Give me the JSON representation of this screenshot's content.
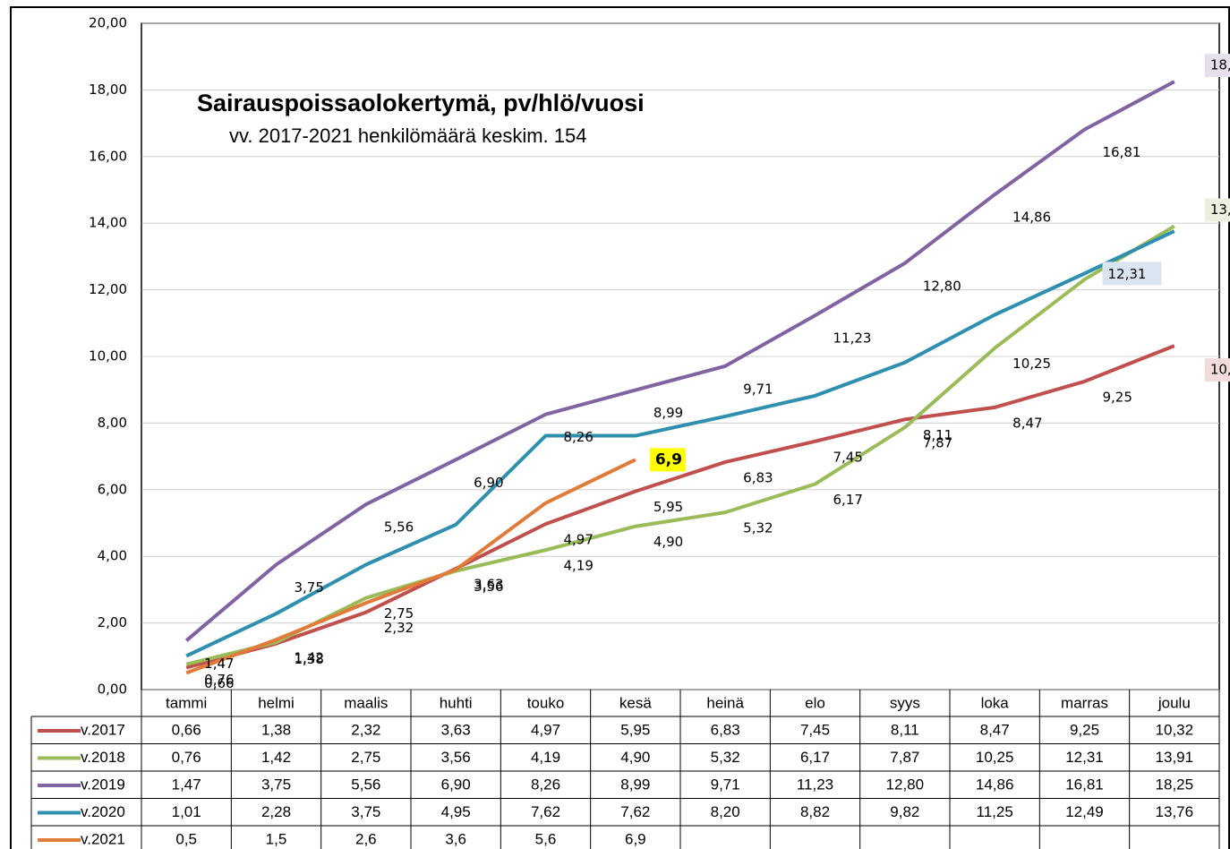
{
  "chart_data": {
    "type": "line",
    "title": "Sairauspoissaolokertymä,  pv/hlö/vuosi",
    "subtitle": "vv. 2017-2021 henkilömäärä  keskim. 154",
    "categories": [
      "tammi",
      "helmi",
      "maalis",
      "huhti",
      "touko",
      "kesä",
      "heinä",
      "elo",
      "syys",
      "loka",
      "marras",
      "joulu"
    ],
    "ylim": [
      0,
      20
    ],
    "yticks": [
      {
        "value": 0,
        "label": "0,00"
      },
      {
        "value": 2,
        "label": "2,00"
      },
      {
        "value": 4,
        "label": "4,00"
      },
      {
        "value": 6,
        "label": "6,00"
      },
      {
        "value": 8,
        "label": "8,00"
      },
      {
        "value": 10,
        "label": "10,00"
      },
      {
        "value": 12,
        "label": "12,00"
      },
      {
        "value": 14,
        "label": "14,00"
      },
      {
        "value": 16,
        "label": "16,00"
      },
      {
        "value": 18,
        "label": "18,00"
      },
      {
        "value": 20,
        "label": "20,00"
      }
    ],
    "grid": true,
    "series": [
      {
        "name": "v.2017",
        "color": "#c0504d",
        "values": [
          0.66,
          1.38,
          2.32,
          3.63,
          4.97,
          5.95,
          6.83,
          7.45,
          8.11,
          8.47,
          9.25,
          10.32
        ],
        "value_labels": [
          "0,66",
          "1,38",
          "2,32",
          "3,63",
          "4,97",
          "5,95",
          "6,83",
          "7,45",
          "8,11",
          "8,47",
          "9,25",
          "10,32"
        ]
      },
      {
        "name": "v.2018",
        "color": "#9bbb59",
        "values": [
          0.76,
          1.42,
          2.75,
          3.56,
          4.19,
          4.9,
          5.32,
          6.17,
          7.87,
          10.25,
          12.31,
          13.91
        ],
        "value_labels": [
          "0,76",
          "1,42",
          "2,75",
          "3,56",
          "4,19",
          "4,90",
          "5,32",
          "6,17",
          "7,87",
          "10,25",
          "12,31",
          "13,91"
        ]
      },
      {
        "name": "v.2019",
        "color": "#8064a2",
        "values": [
          1.47,
          3.75,
          5.56,
          6.9,
          8.26,
          8.99,
          9.71,
          11.23,
          12.8,
          14.86,
          16.81,
          18.25
        ],
        "value_labels": [
          "1,47",
          "3,75",
          "5,56",
          "6,90",
          "8,26",
          "8,99",
          "9,71",
          "11,23",
          "12,80",
          "14,86",
          "16,81",
          "18,25"
        ]
      },
      {
        "name": "v.2020",
        "color": "#2f8fae",
        "values": [
          1.01,
          2.28,
          3.75,
          4.95,
          7.62,
          7.62,
          8.2,
          8.82,
          9.82,
          11.25,
          12.49,
          13.76
        ],
        "value_labels": [
          "1,01",
          "2,28",
          "3,75",
          "4,95",
          "7,62",
          "7,62",
          "8,20",
          "8,82",
          "9,82",
          "11,25",
          "12,49",
          "13,76"
        ]
      },
      {
        "name": "v.2021",
        "color": "#e07b39",
        "values": [
          0.5,
          1.5,
          2.6,
          3.6,
          5.6,
          6.9,
          null,
          null,
          null,
          null,
          null,
          null
        ],
        "value_labels": [
          "0,5",
          "1,5",
          "2,6",
          "3,6",
          "5,6",
          "6,9",
          null,
          null,
          null,
          null,
          null,
          null
        ]
      }
    ]
  }
}
